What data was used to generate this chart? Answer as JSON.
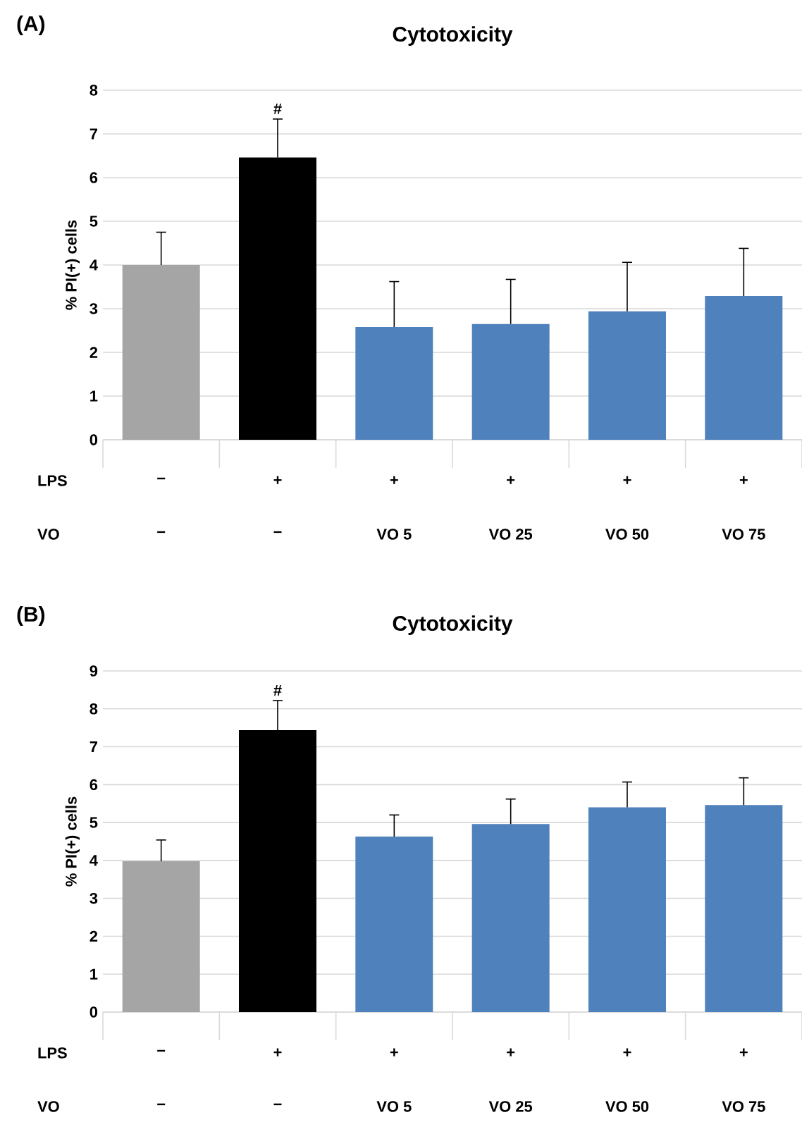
{
  "chart_data": [
    {
      "type": "bar",
      "title": "Cytotoxicity",
      "ylabel": "% PI(+) cells",
      "categories": [
        "−",
        "−",
        "VO 5",
        "VO 25",
        "VO 50",
        "VO 75"
      ],
      "values": [
        4.0,
        6.46,
        2.58,
        2.65,
        2.94,
        3.29
      ],
      "errors": [
        0.75,
        0.88,
        1.04,
        1.02,
        1.12,
        1.09
      ],
      "colors": [
        "#a5a5a5",
        "#000000",
        "#4f81bd",
        "#4f81bd",
        "#4f81bd",
        "#4f81bd"
      ],
      "ylim": [
        0,
        8
      ],
      "yticks": [
        0,
        1,
        2,
        3,
        4,
        5,
        6,
        7,
        8
      ],
      "grid": "y",
      "annotations": [
        "(A)",
        "#",
        "LPS",
        "−",
        "+",
        "+",
        "+",
        "+",
        "+",
        "VO"
      ]
    },
    {
      "type": "bar",
      "title": "Cytotoxicity",
      "ylabel": "% PI(+) cells",
      "categories": [
        "−",
        "−",
        "VO 5",
        "VO 25",
        "VO 50",
        "VO 75"
      ],
      "values": [
        3.98,
        7.44,
        4.63,
        4.96,
        5.4,
        5.46
      ],
      "errors": [
        0.56,
        0.78,
        0.57,
        0.66,
        0.67,
        0.72
      ],
      "colors": [
        "#a5a5a5",
        "#000000",
        "#4f81bd",
        "#4f81bd",
        "#4f81bd",
        "#4f81bd"
      ],
      "ylim": [
        0,
        9
      ],
      "yticks": [
        0,
        1,
        2,
        3,
        4,
        5,
        6,
        7,
        8,
        9
      ],
      "grid": "y",
      "annotations": [
        "(B)",
        "#",
        "LPS",
        "−",
        "+",
        "+",
        "+",
        "+",
        "+",
        "VO"
      ]
    }
  ]
}
